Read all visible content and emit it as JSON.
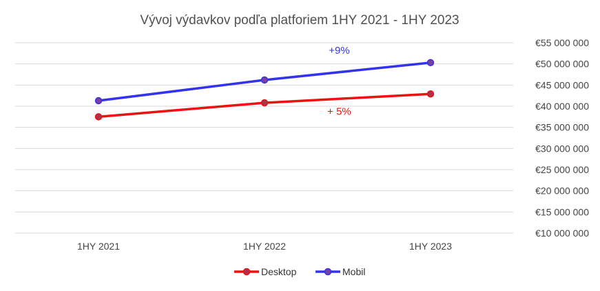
{
  "chart_data": {
    "type": "line",
    "title": "Vývoj výdavkov podľa platforiem 1HY 2021 -  1HY 2023",
    "categories": [
      "1HY 2021",
      "1HY 2022",
      "1HY 2023"
    ],
    "series": [
      {
        "name": "Desktop",
        "values": [
          37500000,
          40800000,
          42900000
        ],
        "color": "#ee1111",
        "marker_color": "#b03050"
      },
      {
        "name": "Mobil",
        "values": [
          41300000,
          46200000,
          50300000
        ],
        "color": "#3333ee",
        "marker_color": "#7a3fa0"
      }
    ],
    "ylim": [
      10000000,
      55000000
    ],
    "yticks": [
      10000000,
      15000000,
      20000000,
      25000000,
      30000000,
      35000000,
      40000000,
      45000000,
      50000000,
      55000000
    ],
    "ytick_labels": [
      "€10 000 000",
      "€15 000 000",
      "€20 000 000",
      "€25 000 000",
      "€30 000 000",
      "€35 000 000",
      "€40 000 000",
      "€45 000 000",
      "€50 000 000",
      "€55 000 000"
    ],
    "y_axis_position": "right",
    "grid": true,
    "legend": "bottom",
    "annotations": [
      {
        "text": "+9%",
        "series": "Mobil",
        "x": 1.45,
        "y": 52400000,
        "color": "#3333ee"
      },
      {
        "text": "+ 5%",
        "series": "Desktop",
        "x": 1.45,
        "y": 38000000,
        "color": "#ee1111"
      }
    ]
  }
}
